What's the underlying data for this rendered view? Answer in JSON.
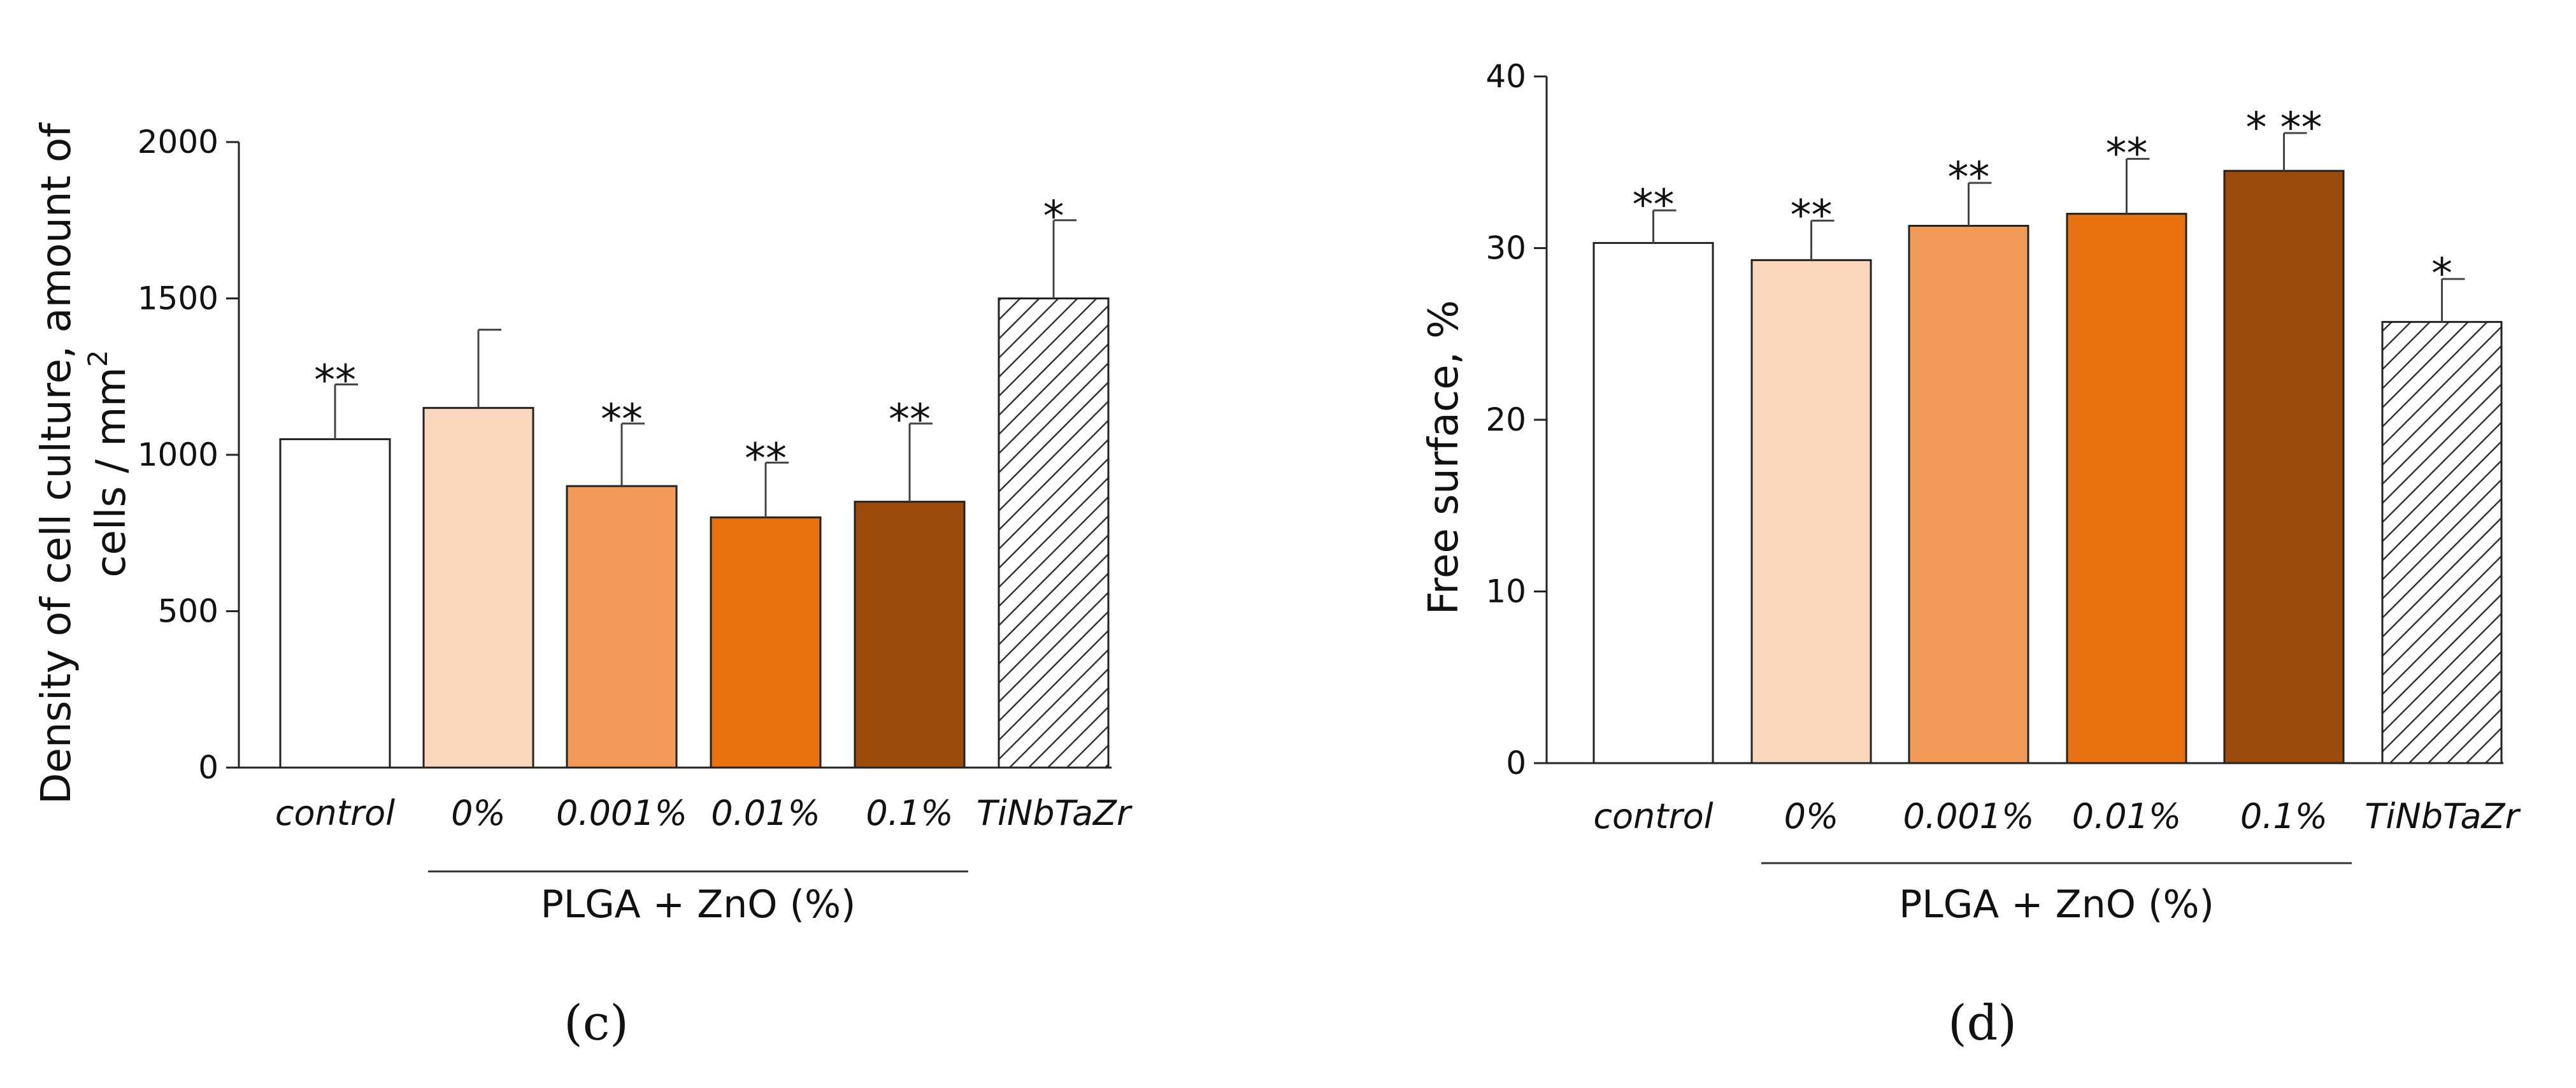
{
  "chart_data": [
    {
      "type": "bar",
      "panel_label": "(c)",
      "title": "",
      "ylabel_line1": "Density of cell culture, amount of",
      "ylabel_line2": "cells / mm",
      "ylabel_sup": "2",
      "xlabel": "",
      "ylim": [
        0,
        2000
      ],
      "yticks": [
        "0",
        "500",
        "1000",
        "1500",
        "2000"
      ],
      "categories": [
        "control",
        "0%",
        "0.001%",
        "0.01%",
        "0.1%",
        "TiNbTaZr"
      ],
      "values": [
        1050,
        1150,
        900,
        800,
        850,
        1500
      ],
      "errors": [
        175,
        250,
        200,
        175,
        250,
        250
      ],
      "significance": [
        "**",
        "",
        "**",
        "**",
        "**",
        "*"
      ],
      "group_label": "PLGA + ZnO (%)",
      "group_span": [
        1,
        4
      ],
      "colors": [
        "#ffffff",
        "#f9d7bd",
        "#f29b59",
        "#e8710f",
        "#9c4b0b",
        "hatch"
      ]
    },
    {
      "type": "bar",
      "panel_label": "(d)",
      "title": "",
      "ylabel_line1": "Free surface, %",
      "xlabel": "",
      "ylim": [
        0,
        40
      ],
      "yticks": [
        "0",
        "10",
        "20",
        "30",
        "40"
      ],
      "categories": [
        "control",
        "0%",
        "0.001%",
        "0.01%",
        "0.1%",
        "TiNbTaZr"
      ],
      "values": [
        30.3,
        29.3,
        31.3,
        32.0,
        34.5,
        25.7
      ],
      "errors": [
        1.9,
        2.3,
        2.5,
        3.2,
        2.2,
        2.5
      ],
      "significance": [
        "**",
        "**",
        "**",
        "**",
        "* **",
        "*"
      ],
      "group_label": "PLGA + ZnO (%)",
      "group_span": [
        1,
        4
      ],
      "colors": [
        "#ffffff",
        "#f9d7bd",
        "#f29b59",
        "#e8710f",
        "#9c4b0b",
        "hatch"
      ]
    }
  ]
}
